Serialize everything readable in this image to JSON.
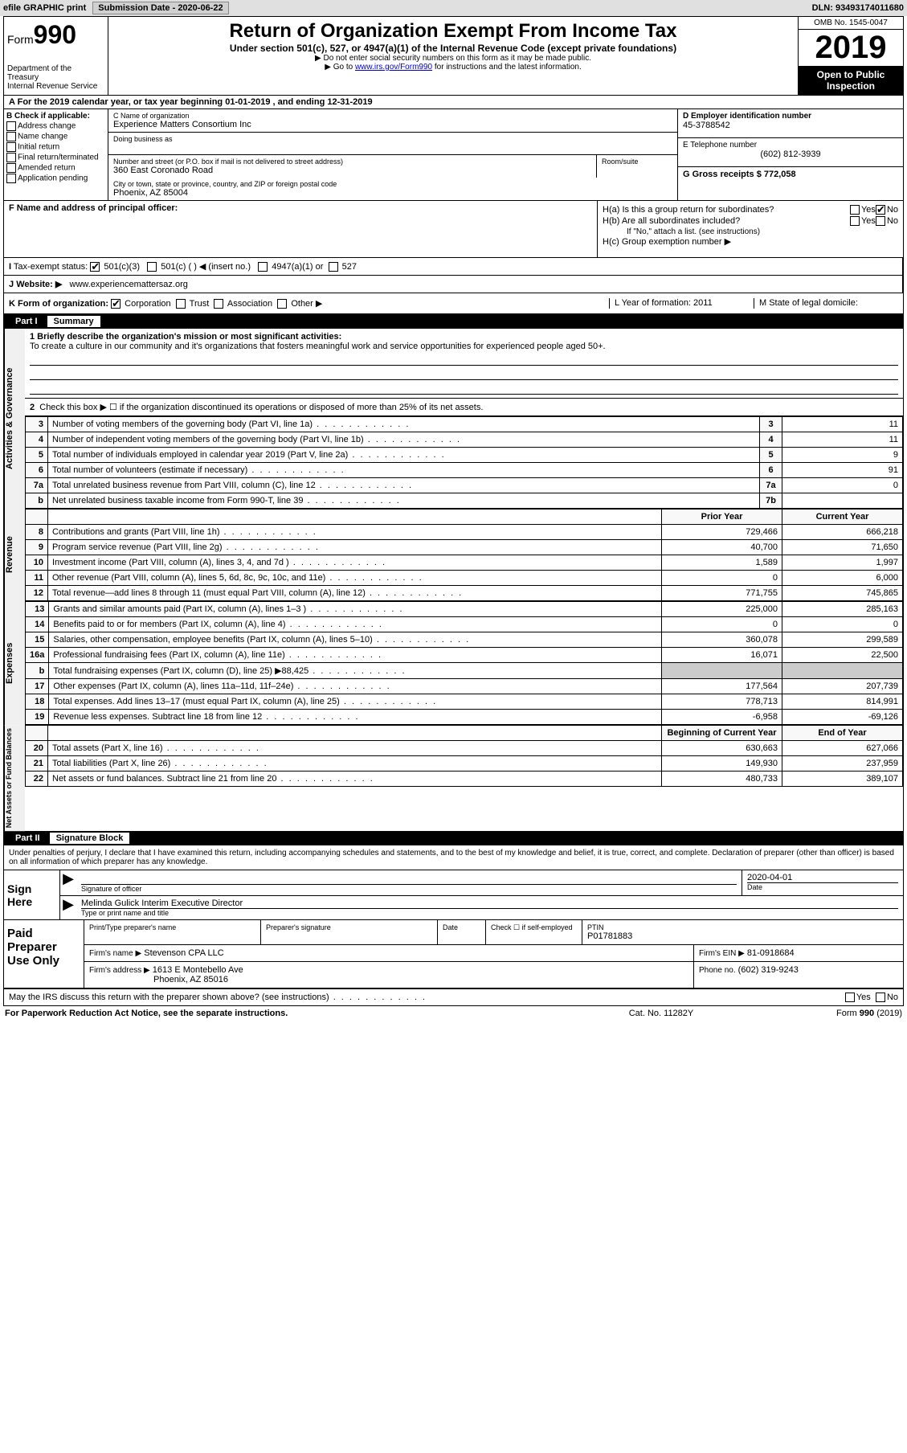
{
  "topbar": {
    "efile": "efile GRAPHIC print",
    "submission_label": "Submission Date - 2020-06-22",
    "dln_label": "DLN: 93493174011680"
  },
  "header": {
    "form_word": "Form",
    "form_num": "990",
    "dept": "Department of the Treasury\nInternal Revenue Service",
    "title": "Return of Organization Exempt From Income Tax",
    "sub1": "Under section 501(c), 527, or 4947(a)(1) of the Internal Revenue Code (except private foundations)",
    "sub2": "▶ Do not enter social security numbers on this form as it may be made public.",
    "sub3_pre": "▶ Go to ",
    "sub3_link": "www.irs.gov/Form990",
    "sub3_post": " for instructions and the latest information.",
    "omb": "OMB No. 1545-0047",
    "year": "2019",
    "public1": "Open to Public",
    "public2": "Inspection"
  },
  "line_a": "For the 2019 calendar year, or tax year beginning 01-01-2019   , and ending 12-31-2019",
  "b": {
    "label": "B Check if applicable:",
    "opts": [
      "Address change",
      "Name change",
      "Initial return",
      "Final return/terminated",
      "Amended return",
      "Application pending"
    ]
  },
  "c": {
    "name_lbl": "C Name of organization",
    "name": "Experience Matters Consortium Inc",
    "dba_lbl": "Doing business as",
    "dba": "",
    "addr_lbl": "Number and street (or P.O. box if mail is not delivered to street address)",
    "addr": "360 East Coronado Road",
    "room_lbl": "Room/suite",
    "city_lbl": "City or town, state or province, country, and ZIP or foreign postal code",
    "city": "Phoenix, AZ  85004"
  },
  "d": {
    "ein_lbl": "D Employer identification number",
    "ein": "45-3788542",
    "tel_lbl": "E Telephone number",
    "tel": "(602) 812-3939",
    "gross_lbl": "G Gross receipts $ 772,058"
  },
  "f": {
    "lbl": "F  Name and address of principal officer:"
  },
  "h": {
    "a": "H(a)  Is this a group return for subordinates?",
    "b": "H(b)  Are all subordinates included?",
    "b_note": "If \"No,\" attach a list. (see instructions)",
    "c": "H(c)  Group exemption number ▶",
    "yes": "Yes",
    "no": "No"
  },
  "i": {
    "lbl": "Tax-exempt status:",
    "opts": [
      "501(c)(3)",
      "501(c) (   ) ◀ (insert no.)",
      "4947(a)(1) or",
      "527"
    ]
  },
  "j": {
    "lbl": "Website: ▶",
    "val": "www.experiencemattersaz.org"
  },
  "k": {
    "lbl": "K Form of organization:",
    "opts": [
      "Corporation",
      "Trust",
      "Association",
      "Other ▶"
    ],
    "l_lbl": "L Year of formation: 2011",
    "m_lbl": "M State of legal domicile:"
  },
  "part1": {
    "num": "Part I",
    "title": "Summary",
    "vert_labels": [
      "Activities & Governance",
      "Revenue",
      "Expenses",
      "Net Assets or Fund Balances"
    ],
    "mission_lbl": "1  Briefly describe the organization's mission or most significant activities:",
    "mission": "To create a culture in our community and it's organizations that fosters meaningful work and service opportunities for experienced people aged 50+.",
    "line2": "Check this box ▶ ☐  if the organization discontinued its operations or disposed of more than 25% of its net assets.",
    "gov_rows": [
      {
        "n": "3",
        "label": "Number of voting members of the governing body (Part VI, line 1a)",
        "box": "3",
        "val": "11"
      },
      {
        "n": "4",
        "label": "Number of independent voting members of the governing body (Part VI, line 1b)",
        "box": "4",
        "val": "11"
      },
      {
        "n": "5",
        "label": "Total number of individuals employed in calendar year 2019 (Part V, line 2a)",
        "box": "5",
        "val": "9"
      },
      {
        "n": "6",
        "label": "Total number of volunteers (estimate if necessary)",
        "box": "6",
        "val": "91"
      },
      {
        "n": "7a",
        "label": "Total unrelated business revenue from Part VIII, column (C), line 12",
        "box": "7a",
        "val": "0"
      },
      {
        "n": "b",
        "label": "Net unrelated business taxable income from Form 990-T, line 39",
        "box": "7b",
        "val": ""
      }
    ],
    "ph_prior": "Prior Year",
    "ph_curr": "Current Year",
    "rev_rows": [
      {
        "n": "8",
        "label": "Contributions and grants (Part VIII, line 1h)",
        "prior": "729,466",
        "curr": "666,218"
      },
      {
        "n": "9",
        "label": "Program service revenue (Part VIII, line 2g)",
        "prior": "40,700",
        "curr": "71,650"
      },
      {
        "n": "10",
        "label": "Investment income (Part VIII, column (A), lines 3, 4, and 7d )",
        "prior": "1,589",
        "curr": "1,997"
      },
      {
        "n": "11",
        "label": "Other revenue (Part VIII, column (A), lines 5, 6d, 8c, 9c, 10c, and 11e)",
        "prior": "0",
        "curr": "6,000"
      },
      {
        "n": "12",
        "label": "Total revenue—add lines 8 through 11 (must equal Part VIII, column (A), line 12)",
        "prior": "771,755",
        "curr": "745,865"
      }
    ],
    "exp_rows": [
      {
        "n": "13",
        "label": "Grants and similar amounts paid (Part IX, column (A), lines 1–3 )",
        "prior": "225,000",
        "curr": "285,163"
      },
      {
        "n": "14",
        "label": "Benefits paid to or for members (Part IX, column (A), line 4)",
        "prior": "0",
        "curr": "0"
      },
      {
        "n": "15",
        "label": "Salaries, other compensation, employee benefits (Part IX, column (A), lines 5–10)",
        "prior": "360,078",
        "curr": "299,589"
      },
      {
        "n": "16a",
        "label": "Professional fundraising fees (Part IX, column (A), line 11e)",
        "prior": "16,071",
        "curr": "22,500"
      },
      {
        "n": "b",
        "label": "Total fundraising expenses (Part IX, column (D), line 25) ▶88,425",
        "prior": "",
        "curr": "",
        "shade": true
      },
      {
        "n": "17",
        "label": "Other expenses (Part IX, column (A), lines 11a–11d, 11f–24e)",
        "prior": "177,564",
        "curr": "207,739"
      },
      {
        "n": "18",
        "label": "Total expenses. Add lines 13–17 (must equal Part IX, column (A), line 25)",
        "prior": "778,713",
        "curr": "814,991"
      },
      {
        "n": "19",
        "label": "Revenue less expenses. Subtract line 18 from line 12",
        "prior": "-6,958",
        "curr": "-69,126"
      }
    ],
    "ph_boy": "Beginning of Current Year",
    "ph_eoy": "End of Year",
    "net_rows": [
      {
        "n": "20",
        "label": "Total assets (Part X, line 16)",
        "prior": "630,663",
        "curr": "627,066"
      },
      {
        "n": "21",
        "label": "Total liabilities (Part X, line 26)",
        "prior": "149,930",
        "curr": "237,959"
      },
      {
        "n": "22",
        "label": "Net assets or fund balances. Subtract line 21 from line 20",
        "prior": "480,733",
        "curr": "389,107"
      }
    ]
  },
  "part2": {
    "num": "Part II",
    "title": "Signature Block",
    "penalty": "Under penalties of perjury, I declare that I have examined this return, including accompanying schedules and statements, and to the best of my knowledge and belief, it is true, correct, and complete. Declaration of preparer (other than officer) is based on all information of which preparer has any knowledge.",
    "sign_here": "Sign Here",
    "sig_officer_lbl": "Signature of officer",
    "date_lbl": "Date",
    "date_val": "2020-04-01",
    "name_title": "Melinda Gulick Interim Executive Director",
    "name_title_lbl": "Type or print name and title",
    "paid": "Paid Preparer Use Only",
    "prep_name_lbl": "Print/Type preparer's name",
    "prep_sig_lbl": "Preparer's signature",
    "prep_date_lbl": "Date",
    "self_emp": "Check ☐ if self-employed",
    "ptin_lbl": "PTIN",
    "ptin": "P01781883",
    "firm_name_lbl": "Firm's name   ▶",
    "firm_name": "Stevenson CPA LLC",
    "firm_ein_lbl": "Firm's EIN ▶",
    "firm_ein": "81-0918684",
    "firm_addr_lbl": "Firm's address ▶",
    "firm_addr1": "1613 E Montebello Ave",
    "firm_addr2": "Phoenix, AZ  85016",
    "firm_phone_lbl": "Phone no.",
    "firm_phone": "(602) 319-9243",
    "irs_discuss": "May the IRS discuss this return with the preparer shown above? (see instructions)"
  },
  "footer": {
    "left": "For Paperwork Reduction Act Notice, see the separate instructions.",
    "mid": "Cat. No. 11282Y",
    "right": "Form 990 (2019)"
  }
}
